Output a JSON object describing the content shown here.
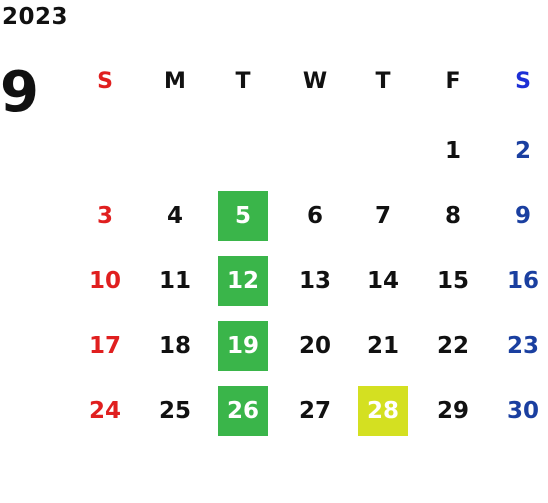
{
  "year": "2023",
  "month": "9",
  "colors": {
    "sunday": "#e01f1f",
    "saturday_header": "#1d2fd6",
    "saturday": "#1a3fa0",
    "weekday": "#111111",
    "highlight_green": "#3ab54a",
    "highlight_yellow": "#d4e021",
    "highlight_text": "#ffffff"
  },
  "weekdays": [
    "S",
    "M",
    "T",
    "W",
    "T",
    "F",
    "S"
  ],
  "weeks": [
    [
      "",
      "",
      "",
      "",
      "",
      "1",
      "2"
    ],
    [
      "3",
      "4",
      "5",
      "6",
      "7",
      "8",
      "9"
    ],
    [
      "10",
      "11",
      "12",
      "13",
      "14",
      "15",
      "16"
    ],
    [
      "17",
      "18",
      "19",
      "20",
      "21",
      "22",
      "23"
    ],
    [
      "24",
      "25",
      "26",
      "27",
      "28",
      "29",
      "30"
    ]
  ],
  "highlights": {
    "5": "green",
    "12": "green",
    "19": "green",
    "26": "green",
    "28": "yellow"
  }
}
